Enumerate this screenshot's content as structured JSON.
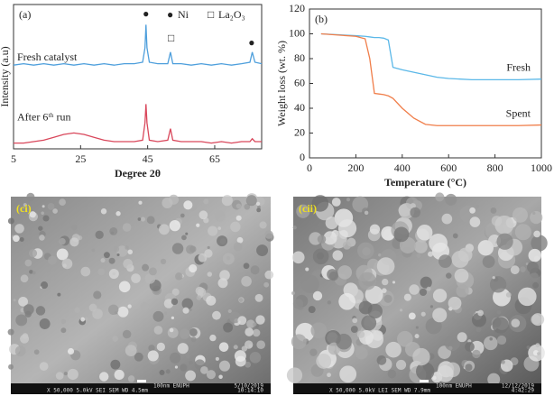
{
  "chart_data": [
    {
      "type": "line",
      "title": "(a)",
      "xlabel": "Degree 2θ",
      "ylabel": "Intensity (a.u)",
      "x": [
        5,
        8,
        11,
        14,
        17,
        20,
        23,
        26,
        29,
        32,
        35,
        38,
        41,
        43.5,
        44.2,
        44.5,
        44.8,
        45.5,
        48,
        51,
        51.8,
        52.5,
        55,
        58,
        61,
        64,
        67,
        70,
        73,
        75.5,
        76.2,
        77,
        79
      ],
      "series": [
        {
          "name": "Fresh catalyst",
          "color": "#4e9fdc",
          "values": [
            58,
            59,
            58,
            59,
            58,
            59,
            58,
            59,
            58,
            59,
            58,
            59,
            59,
            60,
            70,
            86,
            70,
            60,
            59,
            59,
            67,
            59,
            59,
            58,
            59,
            58,
            59,
            58,
            59,
            60,
            67,
            60,
            59
          ]
        },
        {
          "name": "After 6ᵗʰ run",
          "color": "#d9475b",
          "values": [
            4,
            4,
            5,
            6,
            8,
            10,
            11,
            10,
            8,
            6,
            5,
            5,
            5,
            6,
            18,
            31,
            18,
            6,
            5,
            6,
            14,
            6,
            5,
            5,
            5,
            4,
            5,
            4,
            5,
            5,
            7,
            5,
            5
          ]
        }
      ],
      "xlim": [
        5,
        79
      ],
      "xticks": [
        5,
        25,
        45,
        65
      ],
      "ylim": [
        0,
        100
      ],
      "annotations": [
        {
          "text": "●",
          "x": 44.5,
          "y": 93
        },
        {
          "text": "□",
          "x": 52,
          "y": 76
        },
        {
          "text": "●",
          "x": 76,
          "y": 73
        }
      ],
      "legend_items": [
        {
          "marker": "●",
          "label": "Ni"
        },
        {
          "marker": "□",
          "label": "La₂O₃"
        }
      ]
    },
    {
      "type": "line",
      "title": "(b)",
      "xlabel": "Temperature (°C)",
      "ylabel": "Weight loss (wt. %)",
      "x": [
        50,
        200,
        240,
        260,
        280,
        300,
        320,
        340,
        360,
        400,
        450,
        500,
        550,
        600,
        700,
        800,
        900,
        1000
      ],
      "series": [
        {
          "name": "Fresh",
          "color": "#5bb8e8",
          "values": [
            100,
            98.5,
            98,
            97.5,
            97,
            97,
            96.5,
            95,
            73,
            71,
            69,
            67,
            65,
            64,
            63,
            63,
            63,
            63.5
          ]
        },
        {
          "name": "Spent",
          "color": "#f07e4a",
          "values": [
            100,
            98,
            96,
            80,
            52,
            51.5,
            51,
            50,
            48,
            40,
            32,
            27,
            26,
            26,
            26,
            26,
            26,
            26.5
          ]
        }
      ],
      "xlim": [
        0,
        1000
      ],
      "xticks": [
        0,
        200,
        400,
        600,
        800,
        1000
      ],
      "ylim": [
        0,
        120
      ],
      "yticks": [
        0,
        20,
        40,
        60,
        80,
        100,
        120
      ]
    }
  ],
  "micrographs": [
    {
      "label": "(ci)",
      "scale": "100nm ENUPH",
      "info": "X 50,000   5.0kV  SEI   SEM   WD 4.5mm",
      "date": "5/10/2019",
      "time": "10:14:10"
    },
    {
      "label": "(cii)",
      "scale": "100nm ENUPH",
      "info": "X 50,000   5.0kV  LEI   SEM   WD 7.9mm",
      "date": "12/12/2019",
      "time": "4:42:29"
    }
  ]
}
